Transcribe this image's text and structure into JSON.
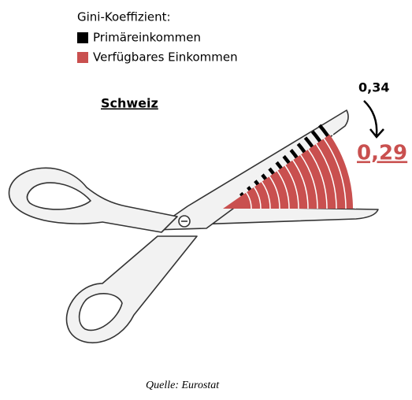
{
  "chart_data": {
    "type": "fan",
    "legend_title": "Gini-Koeffizient:",
    "categories": [
      "Schweiz"
    ],
    "series": [
      {
        "name": "Primäreinkommen",
        "color": "#000000",
        "values": [
          0.34
        ],
        "value_labels": [
          "0,34"
        ]
      },
      {
        "name": "Verfügbares Einkommen",
        "color": "#c9504f",
        "values": [
          0.29
        ],
        "value_labels": [
          "0,29"
        ]
      }
    ],
    "source": "Quelle: Eurostat"
  }
}
